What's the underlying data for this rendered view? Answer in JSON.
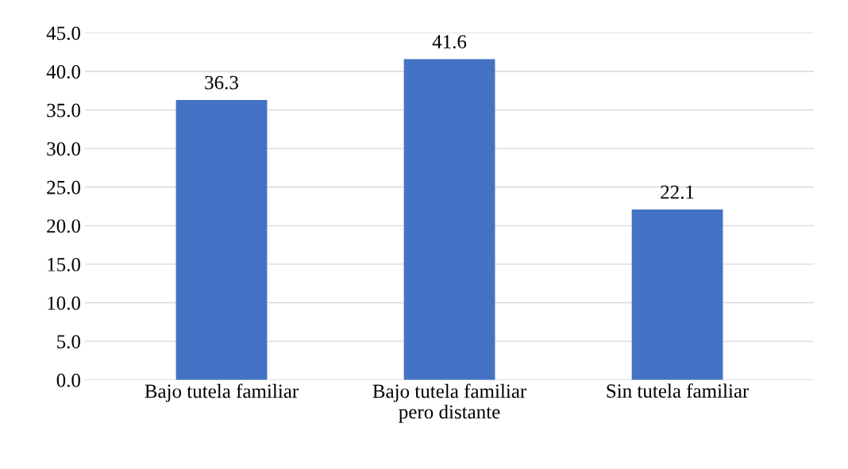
{
  "chart_data": {
    "type": "bar",
    "categories": [
      "Bajo tutela familiar",
      "Bajo tutela familiar\npero distante",
      "Sin tutela familiar"
    ],
    "values": [
      36.3,
      41.6,
      22.1
    ],
    "color": "#4472c4",
    "ylim": [
      0,
      45
    ],
    "yticks": [
      {
        "value": 0,
        "label": "0.0"
      },
      {
        "value": 5,
        "label": "5.0"
      },
      {
        "value": 10,
        "label": "10.0"
      },
      {
        "value": 15,
        "label": "15.0"
      },
      {
        "value": 20,
        "label": "20.0"
      },
      {
        "value": 25,
        "label": "25.0"
      },
      {
        "value": 30,
        "label": "30.0"
      },
      {
        "value": 35,
        "label": "35.0"
      },
      {
        "value": 40,
        "label": "40.0"
      },
      {
        "value": 45,
        "label": "45.0"
      }
    ],
    "grid": "y",
    "data_labels": true,
    "legend": false
  }
}
